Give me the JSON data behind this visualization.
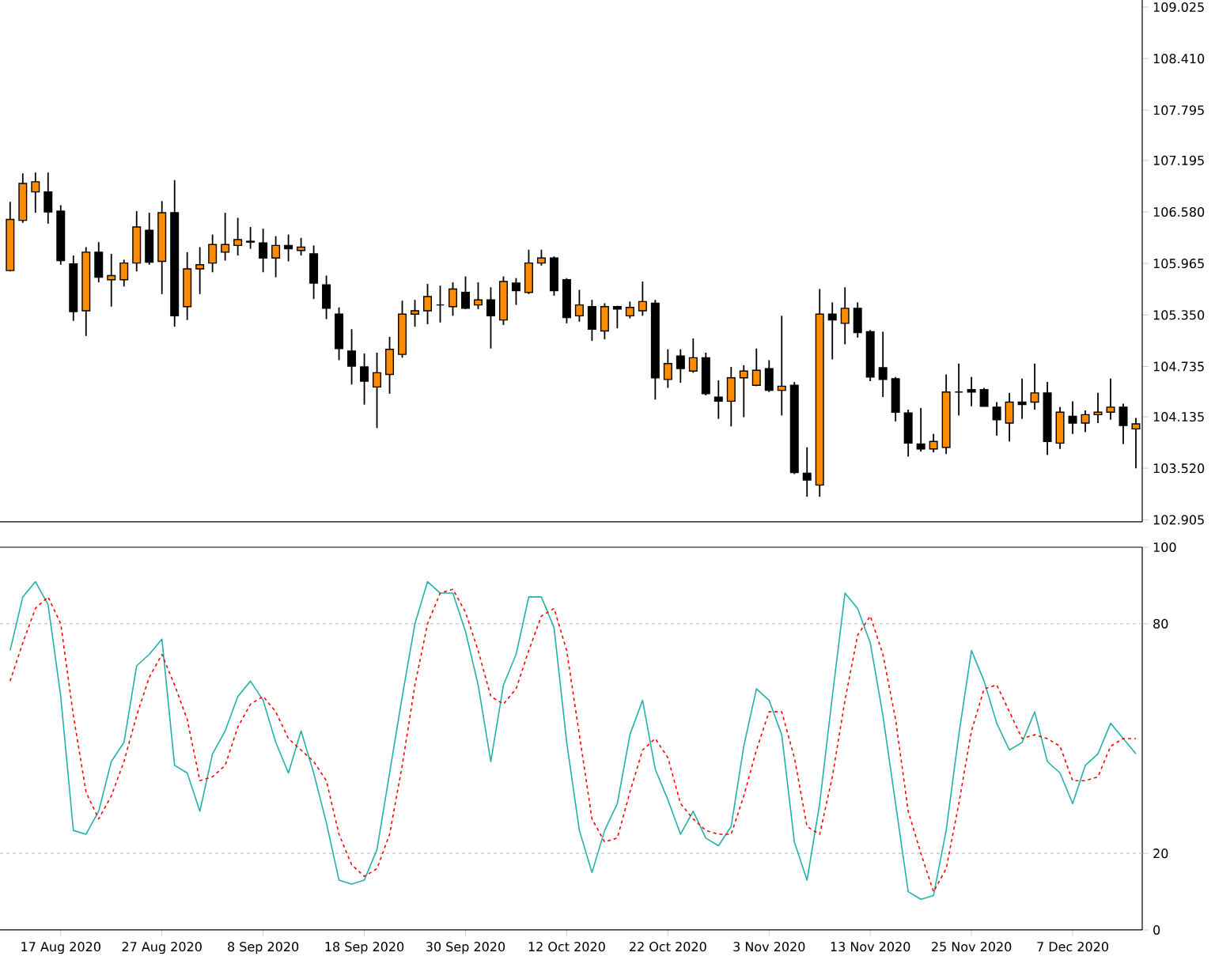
{
  "chart_data": [
    {
      "type": "candlestick",
      "tick_labels": "y",
      "categories": [
        null,
        null,
        null,
        null,
        null,
        null,
        null,
        null,
        null,
        null,
        null,
        null,
        null,
        null,
        null,
        null,
        null,
        null,
        null,
        null,
        null,
        null,
        null,
        null,
        null,
        null,
        null,
        null,
        null,
        null,
        null,
        null,
        null,
        null,
        null,
        null,
        null,
        null,
        null,
        null,
        null,
        null,
        null,
        null,
        null,
        null,
        null,
        null,
        null,
        null,
        null,
        null,
        null,
        null,
        null,
        null,
        null,
        null,
        null,
        null,
        null,
        null,
        null,
        null,
        null,
        null,
        null,
        null,
        null,
        null,
        null,
        null,
        null,
        null,
        null,
        null,
        null,
        null,
        null,
        null,
        null,
        null,
        null,
        null,
        null,
        null,
        null,
        null,
        null,
        null
      ],
      "ylim": [
        102.88,
        109.11
      ],
      "yticks": [
        102.905,
        {
          "value": 103.52,
          "label": "103.520"
        },
        104.135,
        104.735,
        {
          "value": 105.35,
          "label": "105.350"
        },
        105.965,
        {
          "value": 106.58,
          "label": "106.580"
        },
        107.195,
        107.795,
        {
          "value": 108.41,
          "label": "108.410"
        },
        109.025
      ],
      "ohlc": [
        [
          105.88,
          106.7,
          105.87,
          106.49
        ],
        [
          106.48,
          107.04,
          106.45,
          106.92
        ],
        [
          106.82,
          107.05,
          106.57,
          106.94
        ],
        [
          106.82,
          107.05,
          106.44,
          106.58
        ],
        [
          106.59,
          106.66,
          105.95,
          106.0
        ],
        [
          105.96,
          106.06,
          105.28,
          105.39
        ],
        [
          105.4,
          106.16,
          105.1,
          106.1
        ],
        [
          106.1,
          106.22,
          105.74,
          105.8
        ],
        [
          105.77,
          106.08,
          105.45,
          105.82
        ],
        [
          105.77,
          106.01,
          105.69,
          105.97
        ],
        [
          105.97,
          106.59,
          105.87,
          106.4
        ],
        [
          106.36,
          106.57,
          105.95,
          105.98
        ],
        [
          105.99,
          106.71,
          105.6,
          106.57
        ],
        [
          106.57,
          106.96,
          105.21,
          105.34
        ],
        [
          105.45,
          106.1,
          105.29,
          105.9
        ],
        [
          105.9,
          106.16,
          105.6,
          105.95
        ],
        [
          105.97,
          106.31,
          105.86,
          106.19
        ],
        [
          106.1,
          106.57,
          106.0,
          106.19
        ],
        [
          106.18,
          106.51,
          106.06,
          106.25
        ],
        [
          106.23,
          106.4,
          106.14,
          106.22
        ],
        [
          106.21,
          106.38,
          105.86,
          106.03
        ],
        [
          106.03,
          106.29,
          105.8,
          106.18
        ],
        [
          106.18,
          106.31,
          105.99,
          106.14
        ],
        [
          106.12,
          106.27,
          106.06,
          106.16
        ],
        [
          106.08,
          106.18,
          105.54,
          105.73
        ],
        [
          105.71,
          105.82,
          105.3,
          105.43
        ],
        [
          105.36,
          105.44,
          104.81,
          104.95
        ],
        [
          104.92,
          105.18,
          104.52,
          104.74
        ],
        [
          104.73,
          104.89,
          104.28,
          104.56
        ],
        [
          104.49,
          104.9,
          104.0,
          104.66
        ],
        [
          104.64,
          105.09,
          104.41,
          104.94
        ],
        [
          104.88,
          105.52,
          104.84,
          105.36
        ],
        [
          105.36,
          105.53,
          105.21,
          105.4
        ],
        [
          105.4,
          105.72,
          105.24,
          105.57
        ],
        [
          105.47,
          105.7,
          105.26,
          105.47
        ],
        [
          105.45,
          105.74,
          105.34,
          105.66
        ],
        [
          105.62,
          105.81,
          105.42,
          105.43
        ],
        [
          105.47,
          105.74,
          105.42,
          105.53
        ],
        [
          105.53,
          105.68,
          104.95,
          105.34
        ],
        [
          105.29,
          105.81,
          105.23,
          105.75
        ],
        [
          105.73,
          105.79,
          105.47,
          105.64
        ],
        [
          105.62,
          106.13,
          105.6,
          105.97
        ],
        [
          105.97,
          106.13,
          105.94,
          106.03
        ],
        [
          106.03,
          106.05,
          105.58,
          105.64
        ],
        [
          105.77,
          105.79,
          105.25,
          105.32
        ],
        [
          105.34,
          105.65,
          105.27,
          105.47
        ],
        [
          105.45,
          105.53,
          105.04,
          105.18
        ],
        [
          105.16,
          105.49,
          105.06,
          105.45
        ],
        [
          105.45,
          105.46,
          105.19,
          105.42
        ],
        [
          105.34,
          105.51,
          105.31,
          105.44
        ],
        [
          105.4,
          105.75,
          105.34,
          105.51
        ],
        [
          105.49,
          105.53,
          104.34,
          104.6
        ],
        [
          104.58,
          104.94,
          104.48,
          104.77
        ],
        [
          104.86,
          104.94,
          104.54,
          104.71
        ],
        [
          104.68,
          105.07,
          104.66,
          104.84
        ],
        [
          104.84,
          104.9,
          104.39,
          104.41
        ],
        [
          104.37,
          104.57,
          104.11,
          104.32
        ],
        [
          104.32,
          104.73,
          104.02,
          104.6
        ],
        [
          104.6,
          104.75,
          104.13,
          104.68
        ],
        [
          104.51,
          104.95,
          104.5,
          104.69
        ],
        [
          104.71,
          104.81,
          104.43,
          104.45
        ],
        [
          104.45,
          105.34,
          104.15,
          104.5
        ],
        [
          104.51,
          104.55,
          103.45,
          103.47
        ],
        [
          103.46,
          103.77,
          103.18,
          103.38
        ],
        [
          103.32,
          105.66,
          103.18,
          105.36
        ],
        [
          105.36,
          105.5,
          104.82,
          105.29
        ],
        [
          105.25,
          105.68,
          105.0,
          105.43
        ],
        [
          105.43,
          105.5,
          105.08,
          105.14
        ],
        [
          105.15,
          105.17,
          104.56,
          104.61
        ],
        [
          104.72,
          105.15,
          104.37,
          104.58
        ],
        [
          104.59,
          104.61,
          104.08,
          104.19
        ],
        [
          104.18,
          104.22,
          103.66,
          103.82
        ],
        [
          103.81,
          104.24,
          103.72,
          103.75
        ],
        [
          103.75,
          103.93,
          103.71,
          103.84
        ],
        [
          103.77,
          104.64,
          103.69,
          104.43
        ],
        [
          104.43,
          104.77,
          104.15,
          104.43
        ],
        [
          104.46,
          104.61,
          104.26,
          104.43
        ],
        [
          104.46,
          104.48,
          104.26,
          104.26
        ],
        [
          104.25,
          104.31,
          103.91,
          104.1
        ],
        [
          104.06,
          104.42,
          103.84,
          104.31
        ],
        [
          104.31,
          104.59,
          104.11,
          104.28
        ],
        [
          104.31,
          104.77,
          104.22,
          104.42
        ],
        [
          104.42,
          104.55,
          103.68,
          103.84
        ],
        [
          103.82,
          104.25,
          103.75,
          104.19
        ],
        [
          104.14,
          104.32,
          103.93,
          104.06
        ],
        [
          104.06,
          104.21,
          103.95,
          104.16
        ],
        [
          104.16,
          104.42,
          104.06,
          104.19
        ],
        [
          104.19,
          104.59,
          104.1,
          104.25
        ],
        [
          104.25,
          104.29,
          103.81,
          104.03
        ],
        [
          103.99,
          104.12,
          103.52,
          104.05
        ]
      ]
    },
    {
      "type": "line",
      "categories": [
        null,
        null,
        null,
        null,
        "17 Aug 2020",
        null,
        null,
        null,
        null,
        null,
        null,
        null,
        "27 Aug 2020",
        null,
        null,
        null,
        null,
        null,
        null,
        null,
        "8 Sep 2020",
        null,
        null,
        null,
        null,
        null,
        null,
        null,
        "18 Sep 2020",
        null,
        null,
        null,
        null,
        null,
        null,
        null,
        "30 Sep 2020",
        null,
        null,
        null,
        null,
        null,
        null,
        null,
        "12 Oct 2020",
        null,
        null,
        null,
        null,
        null,
        null,
        null,
        "22 Oct 2020",
        null,
        null,
        null,
        null,
        null,
        null,
        null,
        "3 Nov 2020",
        null,
        null,
        null,
        null,
        null,
        null,
        null,
        "13 Nov 2020",
        null,
        null,
        null,
        null,
        null,
        null,
        null,
        "25 Nov 2020",
        null,
        null,
        null,
        null,
        null,
        null,
        null,
        "7 Dec 2020",
        null,
        null,
        null,
        null,
        null
      ],
      "ylim": [
        0,
        100
      ],
      "yticks": [
        0,
        20,
        80,
        100
      ],
      "ref_lines": [
        {
          "axis": "y",
          "value": 20,
          "color": "#c0c0c0",
          "line_style": "dashed"
        },
        {
          "axis": "y",
          "value": 80,
          "color": "#c0c0c0",
          "line_style": "dashed"
        }
      ],
      "series": [
        {
          "color": "#20b2aa",
          "line_style": "solid",
          "values": [
            73,
            87,
            91,
            85,
            61,
            26,
            25,
            31,
            44,
            49,
            69,
            72,
            76,
            43,
            41,
            31,
            46,
            52,
            61,
            65,
            60,
            49,
            41,
            52,
            41,
            28,
            13,
            12,
            13,
            21,
            41,
            61,
            80,
            91,
            88,
            88,
            78,
            64,
            44,
            64,
            72,
            87,
            87,
            79,
            49,
            26,
            15,
            26,
            33,
            51,
            60,
            42,
            34,
            25,
            31,
            24,
            22,
            27,
            48,
            63,
            60,
            51,
            23,
            13,
            33,
            61,
            88,
            84,
            75,
            56,
            33,
            10,
            8,
            9,
            26,
            51,
            73,
            65,
            54,
            47,
            49,
            57,
            44,
            41,
            33,
            43,
            46,
            54,
            50,
            46
          ]
        },
        {
          "color": "#ff0000",
          "line_style": "dashed",
          "values": [
            65,
            75,
            84,
            87,
            80,
            56,
            36,
            29,
            35,
            44,
            56,
            66,
            72,
            64,
            55,
            39,
            40,
            43,
            53,
            59,
            61,
            57,
            50,
            47,
            44,
            39,
            25,
            17,
            14,
            16,
            25,
            43,
            64,
            80,
            88,
            89,
            83,
            73,
            61,
            59,
            63,
            73,
            82,
            84,
            73,
            51,
            29,
            23,
            24,
            36,
            47,
            50,
            45,
            33,
            29,
            26,
            25,
            25,
            35,
            47,
            57,
            57,
            45,
            27,
            25,
            40,
            60,
            77,
            82,
            72,
            55,
            31,
            20,
            10,
            16,
            33,
            52,
            63,
            64,
            57,
            50,
            51,
            50,
            48,
            39,
            39,
            40,
            48,
            50,
            50
          ]
        }
      ]
    }
  ]
}
